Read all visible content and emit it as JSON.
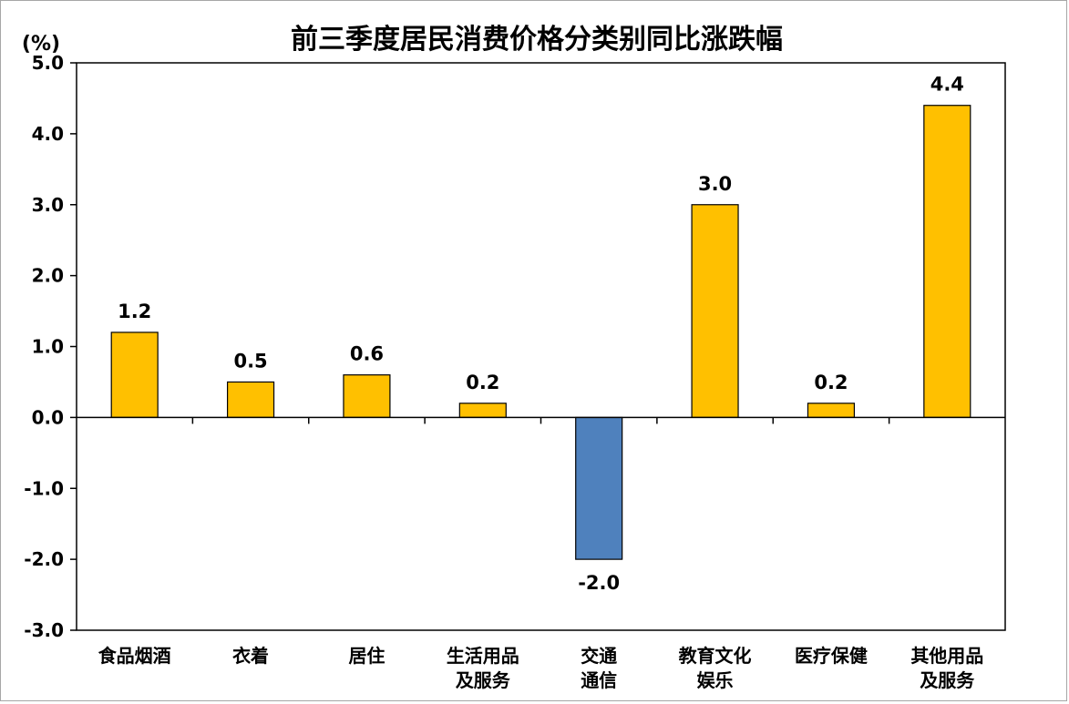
{
  "chart_data": {
    "type": "bar",
    "title": "前三季度居民消费价格分类别同比涨跌幅",
    "ylabel": "(%)",
    "xlabel": "",
    "ylim": [
      -3.0,
      5.0
    ],
    "yticks": [
      "5.0",
      "4.0",
      "3.0",
      "2.0",
      "1.0",
      "0.0",
      "-1.0",
      "-2.0",
      "-3.0"
    ],
    "ytick_values": [
      5,
      4,
      3,
      2,
      1,
      0,
      -1,
      -2,
      -3
    ],
    "categories": [
      [
        "食品烟酒"
      ],
      [
        "衣着"
      ],
      [
        "居住"
      ],
      [
        "生活用品",
        "及服务"
      ],
      [
        "交通",
        "通信"
      ],
      [
        "教育文化",
        "娱乐"
      ],
      [
        "医疗保健"
      ],
      [
        "其他用品",
        "及服务"
      ]
    ],
    "values": [
      1.2,
      0.5,
      0.6,
      0.2,
      -2.0,
      3.0,
      0.2,
      4.4
    ],
    "value_labels": [
      "1.2",
      "0.5",
      "0.6",
      "0.2",
      "-2.0",
      "3.0",
      "0.2",
      "4.4"
    ],
    "colors": {
      "positive": "#FFC000",
      "negative": "#4F81BD",
      "bar_edge": "#000000",
      "axis": "#000000"
    },
    "grid": false,
    "legend": "none"
  }
}
